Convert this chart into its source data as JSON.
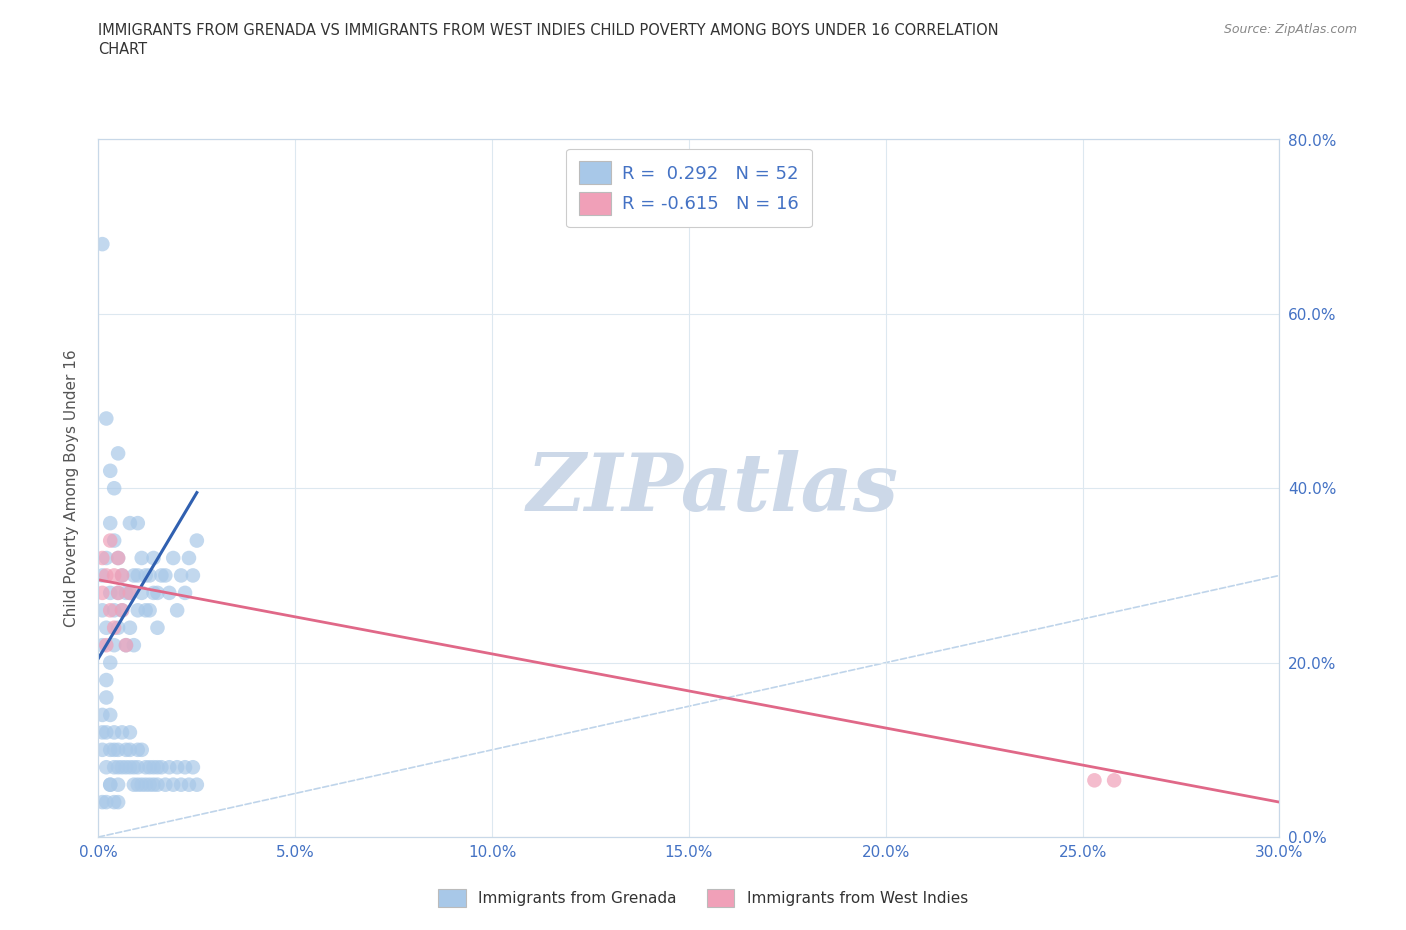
{
  "title_line1": "IMMIGRANTS FROM GRENADA VS IMMIGRANTS FROM WEST INDIES CHILD POVERTY AMONG BOYS UNDER 16 CORRELATION",
  "title_line2": "CHART",
  "source": "Source: ZipAtlas.com",
  "ylabel": "Child Poverty Among Boys Under 16",
  "xlim": [
    0.0,
    0.3
  ],
  "ylim": [
    0.0,
    0.8
  ],
  "xticks": [
    0.0,
    0.05,
    0.1,
    0.15,
    0.2,
    0.25,
    0.3
  ],
  "yticks": [
    0.0,
    0.2,
    0.4,
    0.6,
    0.8
  ],
  "xtick_labels": [
    "0.0%",
    "5.0%",
    "10.0%",
    "15.0%",
    "20.0%",
    "25.0%",
    "30.0%"
  ],
  "ytick_labels_right": [
    "0.0%",
    "20.0%",
    "40.0%",
    "60.0%",
    "80.0%"
  ],
  "blue_color": "#a8c8e8",
  "pink_color": "#f0a0b8",
  "blue_line_color": "#3060b0",
  "pink_line_color": "#e06888",
  "diag_line_color": "#b8d0e8",
  "watermark_text": "ZIPatlas",
  "watermark_color": "#ccd8e8",
  "legend_label1": "R =  0.292   N = 52",
  "legend_label2": "R = -0.615   N = 16",
  "legend_color": "#4472c4",
  "background_color": "#ffffff",
  "grid_color": "#dde8f0",
  "blue_scatter_x": [
    0.001,
    0.001,
    0.001,
    0.002,
    0.002,
    0.002,
    0.003,
    0.003,
    0.003,
    0.004,
    0.004,
    0.004,
    0.005,
    0.005,
    0.005,
    0.006,
    0.006,
    0.007,
    0.007,
    0.008,
    0.008,
    0.008,
    0.009,
    0.009,
    0.01,
    0.01,
    0.01,
    0.011,
    0.011,
    0.012,
    0.012,
    0.013,
    0.013,
    0.014,
    0.014,
    0.015,
    0.015,
    0.016,
    0.017,
    0.018,
    0.019,
    0.02,
    0.021,
    0.022,
    0.023,
    0.024,
    0.025,
    0.001,
    0.002,
    0.003,
    0.004,
    0.005
  ],
  "blue_scatter_y": [
    0.22,
    0.26,
    0.3,
    0.18,
    0.24,
    0.32,
    0.2,
    0.28,
    0.36,
    0.22,
    0.26,
    0.34,
    0.24,
    0.28,
    0.32,
    0.26,
    0.3,
    0.22,
    0.28,
    0.24,
    0.28,
    0.36,
    0.22,
    0.3,
    0.26,
    0.3,
    0.36,
    0.28,
    0.32,
    0.26,
    0.3,
    0.26,
    0.3,
    0.28,
    0.32,
    0.24,
    0.28,
    0.3,
    0.3,
    0.28,
    0.32,
    0.26,
    0.3,
    0.28,
    0.32,
    0.3,
    0.34,
    0.68,
    0.48,
    0.42,
    0.4,
    0.44
  ],
  "blue_scatter_y2": [
    0.14,
    0.1,
    0.12,
    0.16,
    0.08,
    0.12,
    0.06,
    0.1,
    0.14,
    0.08,
    0.1,
    0.12,
    0.08,
    0.1,
    0.06,
    0.08,
    0.12,
    0.08,
    0.1,
    0.12,
    0.08,
    0.1,
    0.06,
    0.08,
    0.1,
    0.06,
    0.08,
    0.1,
    0.06,
    0.08,
    0.06,
    0.08,
    0.06,
    0.08,
    0.06,
    0.08,
    0.06,
    0.08,
    0.06,
    0.08,
    0.06,
    0.08,
    0.06,
    0.08,
    0.06,
    0.08,
    0.06,
    0.04,
    0.04,
    0.06,
    0.04,
    0.04
  ],
  "pink_scatter_x": [
    0.001,
    0.001,
    0.002,
    0.002,
    0.003,
    0.003,
    0.004,
    0.004,
    0.005,
    0.005,
    0.006,
    0.006,
    0.007,
    0.008,
    0.253,
    0.258
  ],
  "pink_scatter_y": [
    0.28,
    0.32,
    0.22,
    0.3,
    0.26,
    0.34,
    0.24,
    0.3,
    0.28,
    0.32,
    0.26,
    0.3,
    0.22,
    0.28,
    0.065,
    0.065
  ],
  "blue_trend_x": [
    0.0,
    0.025
  ],
  "blue_trend_y": [
    0.205,
    0.395
  ],
  "pink_trend_x": [
    0.0,
    0.3
  ],
  "pink_trend_y": [
    0.295,
    0.04
  ]
}
